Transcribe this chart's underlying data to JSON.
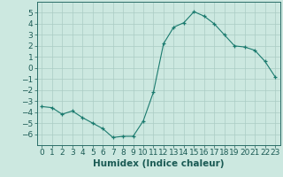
{
  "x": [
    0,
    1,
    2,
    3,
    4,
    5,
    6,
    7,
    8,
    9,
    10,
    11,
    12,
    13,
    14,
    15,
    16,
    17,
    18,
    19,
    20,
    21,
    22,
    23
  ],
  "y": [
    -3.5,
    -3.6,
    -4.2,
    -3.9,
    -4.5,
    -5.0,
    -5.5,
    -6.3,
    -6.2,
    -6.2,
    -4.8,
    -2.2,
    2.2,
    3.7,
    4.1,
    5.1,
    4.7,
    4.0,
    3.0,
    2.0,
    1.9,
    1.6,
    0.6,
    -0.8
  ],
  "line_color": "#1a7a6e",
  "marker": "+",
  "marker_size": 3,
  "bg_color": "#cce8e0",
  "grid_color": "#aaccC4",
  "xlabel": "Humidex (Indice chaleur)",
  "ylim": [
    -7,
    6
  ],
  "xlim": [
    -0.5,
    23.5
  ],
  "yticks": [
    -6,
    -5,
    -4,
    -3,
    -2,
    -1,
    0,
    1,
    2,
    3,
    4,
    5
  ],
  "xticks": [
    0,
    1,
    2,
    3,
    4,
    5,
    6,
    7,
    8,
    9,
    10,
    11,
    12,
    13,
    14,
    15,
    16,
    17,
    18,
    19,
    20,
    21,
    22,
    23
  ],
  "axis_color": "#2a6e68",
  "tick_color": "#1a5a54",
  "tick_fontsize": 6.5,
  "xlabel_fontsize": 7.5
}
